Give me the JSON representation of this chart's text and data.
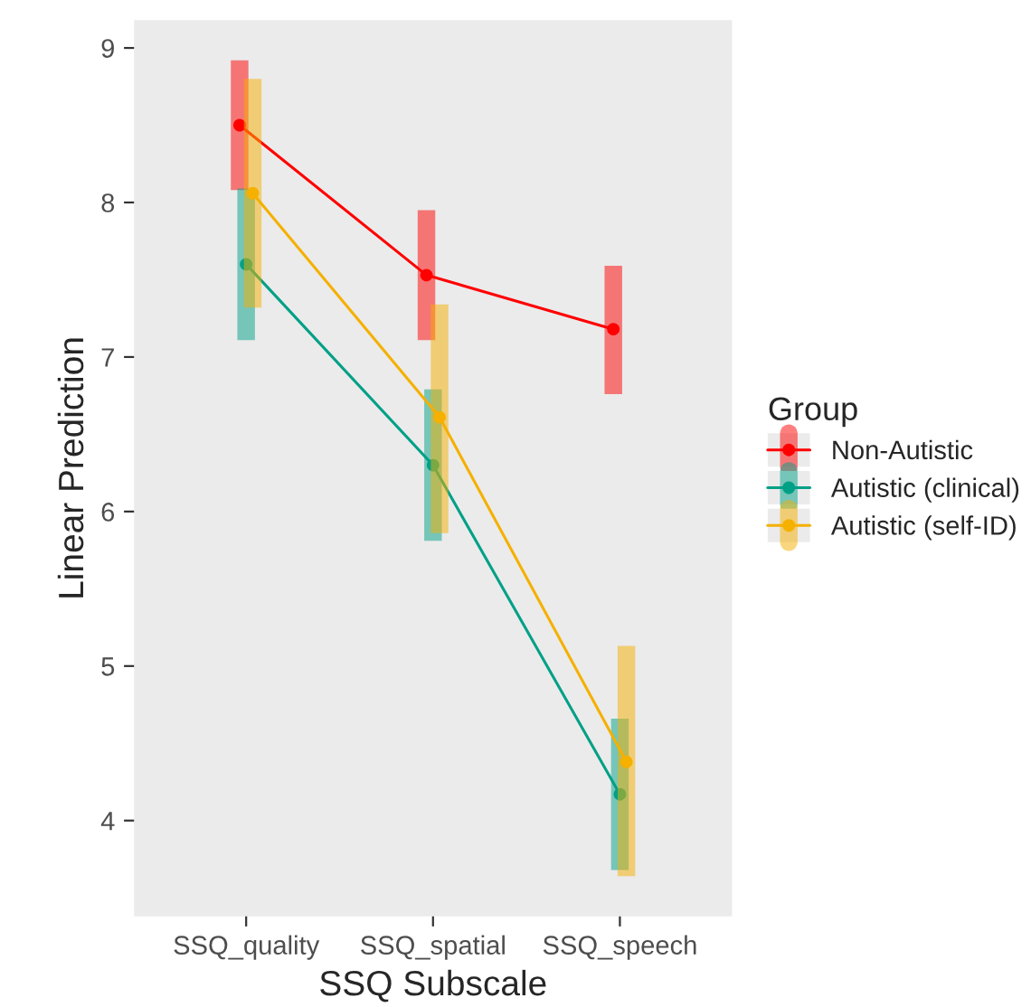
{
  "chart_data": {
    "type": "line",
    "xlabel": "SSQ Subscale",
    "ylabel": "Linear Prediction",
    "legend_title": "Group",
    "categories": [
      "SSQ_quality",
      "SSQ_spatial",
      "SSQ_speech"
    ],
    "series": [
      {
        "name": "Non-Autistic",
        "color": "#ff0000",
        "values": [
          8.5,
          7.53,
          7.18
        ],
        "errors": [
          [
            8.08,
            8.92
          ],
          [
            7.11,
            7.95
          ],
          [
            6.76,
            7.59
          ]
        ]
      },
      {
        "name": "Autistic (clinical)",
        "color": "#00a087",
        "values": [
          7.6,
          6.3,
          4.17
        ],
        "errors": [
          [
            7.11,
            8.09
          ],
          [
            5.81,
            6.79
          ],
          [
            3.68,
            4.66
          ]
        ]
      },
      {
        "name": "Autistic (self-ID)",
        "color": "#f5b000",
        "values": [
          8.06,
          6.61,
          4.38
        ],
        "errors": [
          [
            7.32,
            8.8
          ],
          [
            5.86,
            7.34
          ],
          [
            3.64,
            5.13
          ]
        ]
      }
    ],
    "ylim": [
      3.38,
      9.18
    ],
    "yticks": [
      4,
      5,
      6,
      7,
      8,
      9
    ],
    "grid": false,
    "legend": "right",
    "marker": "circle",
    "line_style": "solid"
  }
}
